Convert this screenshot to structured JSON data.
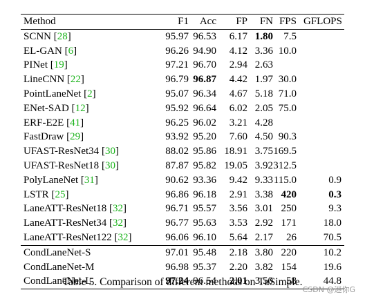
{
  "columns": [
    "Method",
    "F1",
    "Acc",
    "FP",
    "FN",
    "FPS",
    "GFLOPS"
  ],
  "bold_cells": [
    [
      0,
      4
    ],
    [
      3,
      2
    ],
    [
      11,
      5
    ],
    [
      11,
      6
    ],
    [
      17,
      1
    ],
    [
      17,
      3
    ]
  ],
  "groups": [
    [
      {
        "name": "SCNN",
        "cite": "28",
        "cells": [
          "95.97",
          "96.53",
          "6.17",
          "1.80",
          "7.5",
          ""
        ]
      },
      {
        "name": "EL-GAN",
        "cite": "6",
        "cells": [
          "96.26",
          "94.90",
          "4.12",
          "3.36",
          "10.0",
          ""
        ]
      },
      {
        "name": "PINet",
        "cite": "19",
        "cells": [
          "97.21",
          "96.70",
          "2.94",
          "2.63",
          "",
          ""
        ]
      },
      {
        "name": "LineCNN",
        "cite": "22",
        "cells": [
          "96.79",
          "96.87",
          "4.42",
          "1.97",
          "30.0",
          ""
        ]
      },
      {
        "name": "PointLaneNet",
        "cite": "2",
        "cells": [
          "95.07",
          "96.34",
          "4.67",
          "5.18",
          "71.0",
          ""
        ]
      },
      {
        "name": "ENet-SAD",
        "cite": "12",
        "cells": [
          "95.92",
          "96.64",
          "6.02",
          "2.05",
          "75.0",
          ""
        ]
      },
      {
        "name": "ERF-E2E",
        "cite": "41",
        "cells": [
          "96.25",
          "96.02",
          "3.21",
          "4.28",
          "",
          ""
        ]
      },
      {
        "name": "FastDraw",
        "cite": "29",
        "cells": [
          "93.92",
          "95.20",
          "7.60",
          "4.50",
          "90.3",
          ""
        ]
      },
      {
        "name": "UFAST-ResNet34",
        "cite": "30",
        "cells": [
          "88.02",
          "95.86",
          "18.91",
          "3.75",
          "169.5",
          ""
        ]
      },
      {
        "name": "UFAST-ResNet18",
        "cite": "30",
        "cells": [
          "87.87",
          "95.82",
          "19.05",
          "3.92",
          "312.5",
          ""
        ]
      },
      {
        "name": "PolyLaneNet",
        "cite": "31",
        "cells": [
          "90.62",
          "93.36",
          "9.42",
          "9.33",
          "115.0",
          "0.9"
        ]
      },
      {
        "name": "LSTR",
        "cite": "25",
        "cells": [
          "96.86",
          "96.18",
          "2.91",
          "3.38",
          "420",
          "0.3"
        ]
      },
      {
        "name": "LaneATT-ResNet18",
        "cite": "32",
        "cells": [
          "96.71",
          "95.57",
          "3.56",
          "3.01",
          "250",
          "9.3"
        ]
      },
      {
        "name": "LaneATT-ResNet34",
        "cite": "32",
        "cells": [
          "96.77",
          "95.63",
          "3.53",
          "2.92",
          "171",
          "18.0"
        ]
      },
      {
        "name": "LaneATT-ResNet122",
        "cite": "32",
        "cells": [
          "96.06",
          "96.10",
          "5.64",
          "2.17",
          "26",
          "70.5"
        ]
      }
    ],
    [
      {
        "name": "CondLaneNet-S",
        "cite": "",
        "cells": [
          "97.01",
          "95.48",
          "2.18",
          "3.80",
          "220",
          "10.2"
        ]
      },
      {
        "name": "CondLaneNet-M",
        "cite": "",
        "cells": [
          "96.98",
          "95.37",
          "2.20",
          "3.82",
          "154",
          "19.6"
        ]
      },
      {
        "name": "CondLaneNet-L",
        "cite": "",
        "cells": [
          "97.24",
          "96.54",
          "2.01",
          "3.50",
          "58",
          "44.8"
        ]
      }
    ]
  ],
  "caption": "Table 5. Comparison of different methods on TuSimple.",
  "watermark": "CSDN @迷你G"
}
